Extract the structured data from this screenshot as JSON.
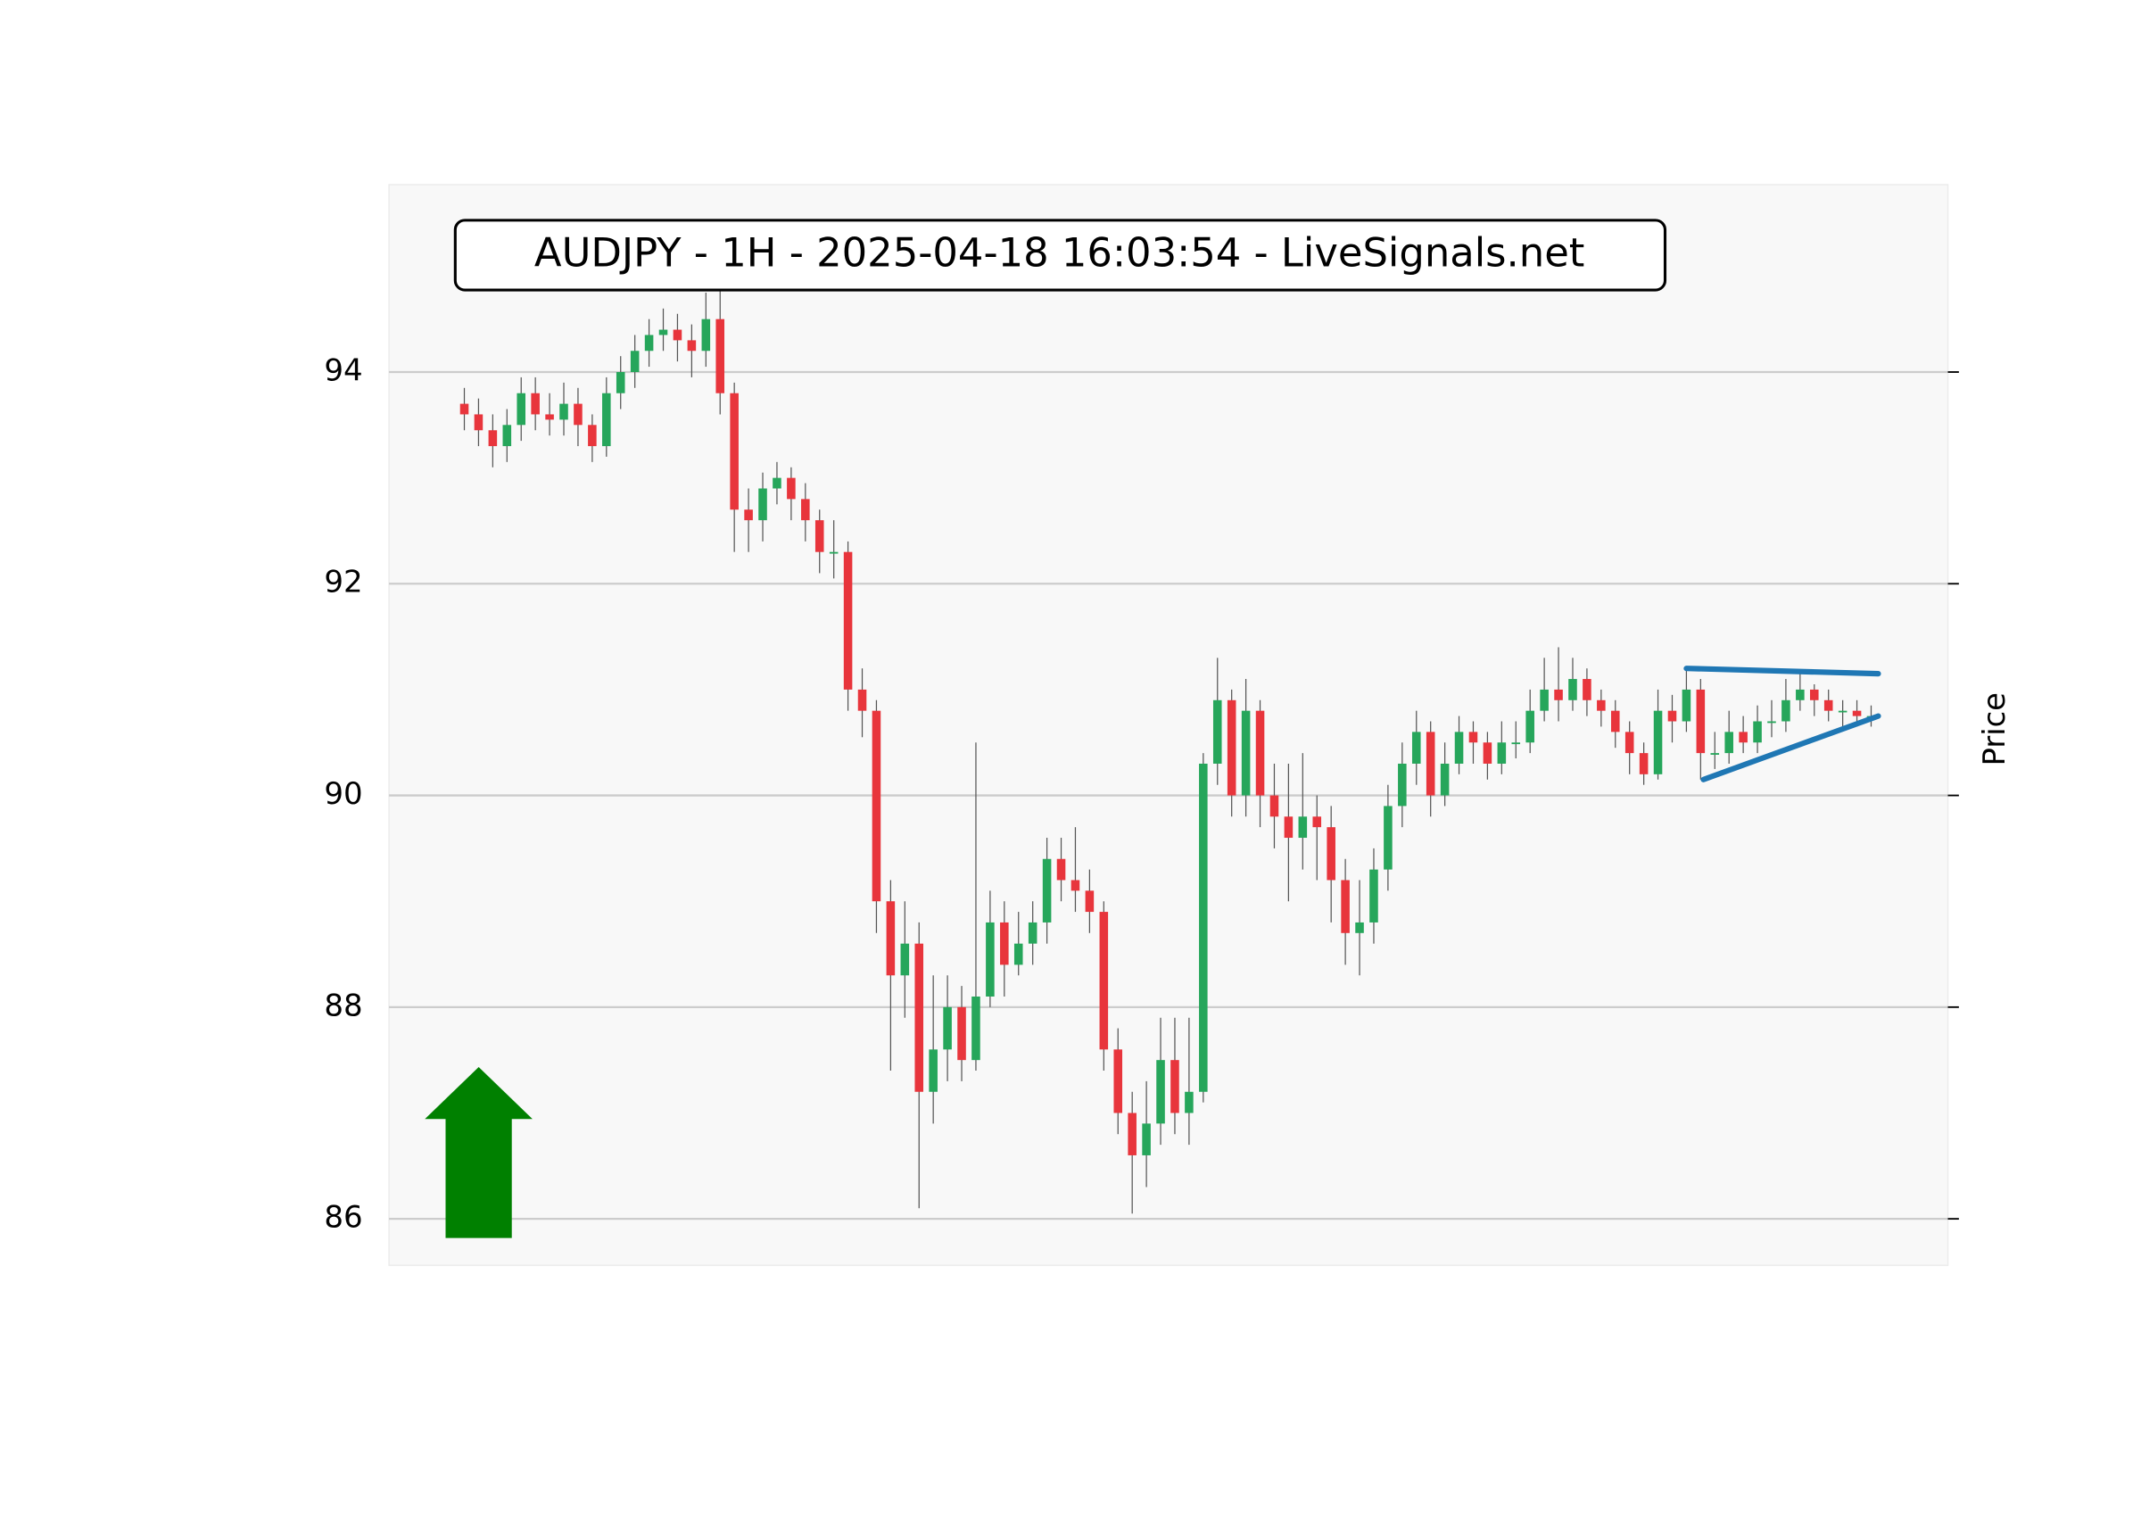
{
  "chart_data": {
    "type": "candlestick",
    "title": "AUDJPY - 1H - 2025-04-18 16:03:54 - LiveSignals.net",
    "ylabel": "Price",
    "open": [
      93.7,
      93.6,
      93.45,
      93.3,
      93.5,
      93.8,
      93.6,
      93.55,
      93.7,
      93.5,
      93.3,
      93.8,
      94.0,
      94.2,
      94.35,
      94.4,
      94.3,
      94.2,
      94.5,
      93.8,
      92.7,
      92.6,
      92.9,
      93.0,
      92.8,
      92.6,
      92.3,
      92.3,
      91.0,
      90.8,
      89.0,
      88.3,
      88.6,
      87.2,
      87.6,
      88.0,
      87.5,
      88.1,
      88.8,
      88.4,
      88.6,
      88.8,
      89.4,
      89.2,
      89.1,
      88.9,
      87.6,
      87.0,
      86.6,
      86.9,
      87.5,
      87.0,
      87.2,
      90.3,
      90.9,
      90.0,
      90.8,
      90.0,
      89.8,
      89.6,
      89.8,
      89.7,
      89.2,
      88.7,
      88.8,
      89.3,
      89.9,
      90.3,
      90.6,
      90.0,
      90.3,
      90.6,
      90.5,
      90.3,
      90.5,
      90.5,
      90.8,
      91.0,
      90.9,
      91.1,
      90.9,
      90.8,
      90.6,
      90.4,
      90.2,
      90.8,
      90.7,
      91.0,
      90.4,
      90.4,
      90.6,
      90.5,
      90.7,
      90.7,
      90.9,
      91.0,
      90.9,
      90.8,
      90.8,
      90.75
    ],
    "high": [
      93.85,
      93.75,
      93.6,
      93.65,
      93.95,
      93.95,
      93.8,
      93.9,
      93.85,
      93.6,
      93.95,
      94.15,
      94.35,
      94.5,
      94.6,
      94.55,
      94.45,
      94.75,
      94.8,
      93.9,
      92.9,
      93.05,
      93.15,
      93.1,
      92.95,
      92.7,
      92.6,
      92.4,
      91.2,
      90.9,
      89.2,
      89.0,
      88.8,
      88.3,
      88.3,
      88.2,
      90.5,
      89.1,
      89.0,
      88.9,
      89.0,
      89.6,
      89.6,
      89.7,
      89.3,
      89.0,
      87.8,
      87.2,
      87.3,
      87.9,
      87.9,
      87.9,
      90.4,
      91.3,
      91.0,
      91.1,
      90.9,
      90.3,
      90.3,
      90.4,
      90.0,
      89.9,
      89.4,
      89.2,
      89.5,
      90.1,
      90.5,
      90.8,
      90.7,
      90.5,
      90.75,
      90.7,
      90.6,
      90.7,
      90.7,
      91.0,
      91.3,
      91.4,
      91.3,
      91.2,
      91.0,
      90.9,
      90.7,
      90.5,
      91.0,
      90.95,
      91.2,
      91.1,
      90.6,
      90.8,
      90.75,
      90.85,
      90.9,
      91.1,
      91.15,
      91.05,
      91.0,
      90.9,
      90.9,
      90.85
    ],
    "low": [
      93.45,
      93.3,
      93.1,
      93.15,
      93.35,
      93.45,
      93.4,
      93.4,
      93.3,
      93.15,
      93.2,
      93.65,
      93.85,
      94.05,
      94.2,
      94.1,
      93.95,
      94.05,
      93.6,
      92.3,
      92.3,
      92.4,
      92.75,
      92.6,
      92.4,
      92.1,
      92.05,
      90.8,
      90.55,
      88.7,
      87.4,
      87.9,
      86.1,
      86.9,
      87.3,
      87.3,
      87.4,
      88.0,
      88.1,
      88.3,
      88.4,
      88.6,
      89.0,
      88.9,
      88.7,
      87.4,
      86.8,
      86.05,
      86.3,
      86.7,
      86.8,
      86.7,
      87.1,
      90.1,
      89.8,
      89.8,
      89.7,
      89.5,
      89.0,
      89.3,
      89.2,
      88.8,
      88.4,
      88.3,
      88.6,
      89.1,
      89.7,
      90.1,
      89.8,
      89.9,
      90.2,
      90.3,
      90.15,
      90.2,
      90.35,
      90.4,
      90.7,
      90.7,
      90.8,
      90.75,
      90.65,
      90.45,
      90.2,
      90.1,
      90.15,
      90.5,
      90.6,
      90.15,
      90.25,
      90.3,
      90.4,
      90.4,
      90.55,
      90.6,
      90.8,
      90.75,
      90.7,
      90.65,
      90.65,
      90.65
    ],
    "close": [
      93.6,
      93.45,
      93.3,
      93.5,
      93.8,
      93.6,
      93.55,
      93.7,
      93.5,
      93.3,
      93.8,
      94.0,
      94.2,
      94.35,
      94.4,
      94.3,
      94.2,
      94.5,
      93.8,
      92.7,
      92.6,
      92.9,
      93.0,
      92.8,
      92.6,
      92.3,
      92.3,
      91.0,
      90.8,
      89.0,
      88.3,
      88.6,
      87.2,
      87.6,
      88.0,
      87.5,
      88.1,
      88.8,
      88.4,
      88.6,
      88.8,
      89.4,
      89.2,
      89.1,
      88.9,
      87.6,
      87.0,
      86.6,
      86.9,
      87.5,
      87.0,
      87.2,
      90.3,
      90.9,
      90.0,
      90.8,
      90.0,
      89.8,
      89.6,
      89.8,
      89.7,
      89.2,
      88.7,
      88.8,
      89.3,
      89.9,
      90.3,
      90.6,
      90.0,
      90.3,
      90.6,
      90.5,
      90.3,
      90.5,
      90.5,
      90.8,
      91.0,
      90.9,
      91.1,
      90.9,
      90.8,
      90.6,
      90.4,
      90.2,
      90.8,
      90.7,
      91.0,
      90.4,
      90.4,
      90.6,
      90.5,
      90.7,
      90.7,
      90.9,
      91.0,
      90.9,
      90.8,
      90.8,
      90.75,
      90.75
    ],
    "up_color": "#26a65b",
    "down_color": "#e8353c",
    "wick_color": "#555555",
    "trendlines": [
      {
        "x": [
          86,
          99.5
        ],
        "y": [
          91.2,
          91.15
        ],
        "color": "#1f77b4"
      },
      {
        "x": [
          87.2,
          99.5
        ],
        "y": [
          90.15,
          90.75
        ],
        "color": "#1f77b4"
      }
    ],
    "xlim": [
      -5.3,
      104.4
    ],
    "ylim": [
      85.56,
      95.77
    ],
    "yticks": [
      86,
      88,
      90,
      92,
      94
    ],
    "grid": true
  }
}
